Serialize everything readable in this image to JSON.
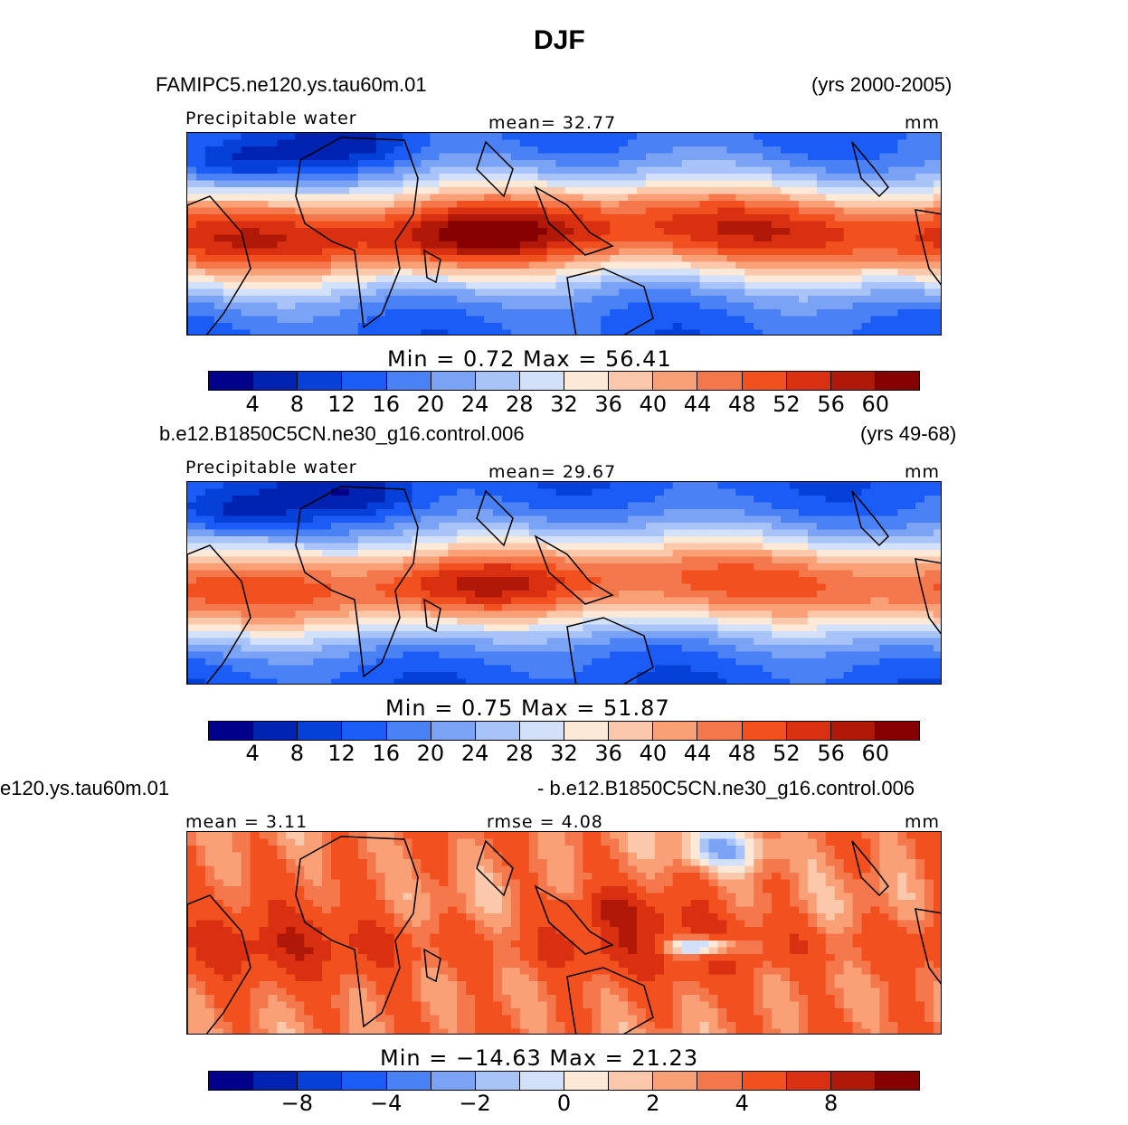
{
  "title": "DJF",
  "colors": [
    "#00008b",
    "#0022b0",
    "#0540d8",
    "#1a5cf5",
    "#4a82f5",
    "#7aa3f5",
    "#a8c3f7",
    "#d2e1f9",
    "#fde9d8",
    "#fcc8ac",
    "#f9a077",
    "#f5784c",
    "#f2501f",
    "#d83010",
    "#b01808",
    "#870000"
  ],
  "panels": [
    {
      "case_left": "FAMIPC5.ne120.ys.tau60m.01",
      "case_right": "(yrs 2000-2005)",
      "label_left": "Precipitable  water",
      "label_mid": "mean=   32.77",
      "units": "mm",
      "stats": "Min  =     0.72  Max  =    56.41",
      "ticks": [
        "4",
        "8",
        "12",
        "16",
        "20",
        "24",
        "28",
        "32",
        "36",
        "40",
        "44",
        "48",
        "52",
        "56",
        "60"
      ],
      "field": "model1"
    },
    {
      "case_left": "b.e12.B1850C5CN.ne30_g16.control.006",
      "case_right": "(yrs 49-68)",
      "label_left": "Precipitable  water",
      "label_mid": "mean=   29.67",
      "units": "mm",
      "stats": "Min  =     0.75  Max  =    51.87",
      "ticks": [
        "4",
        "8",
        "12",
        "16",
        "20",
        "24",
        "28",
        "32",
        "36",
        "40",
        "44",
        "48",
        "52",
        "56",
        "60"
      ],
      "field": "model2"
    },
    {
      "case_left": "e120.ys.tau60m.01",
      "case_right": "- b.e12.B1850C5CN.ne30_g16.control.006",
      "label_left": "mean =    3.11",
      "label_mid": "rmse  =    4.08",
      "units": "mm",
      "stats": "Min  =  −14.63  Max  =    21.23",
      "ticks": [
        "−8",
        "−4",
        "−2",
        "0",
        "2",
        "4",
        "8"
      ],
      "field": "diff"
    }
  ]
}
